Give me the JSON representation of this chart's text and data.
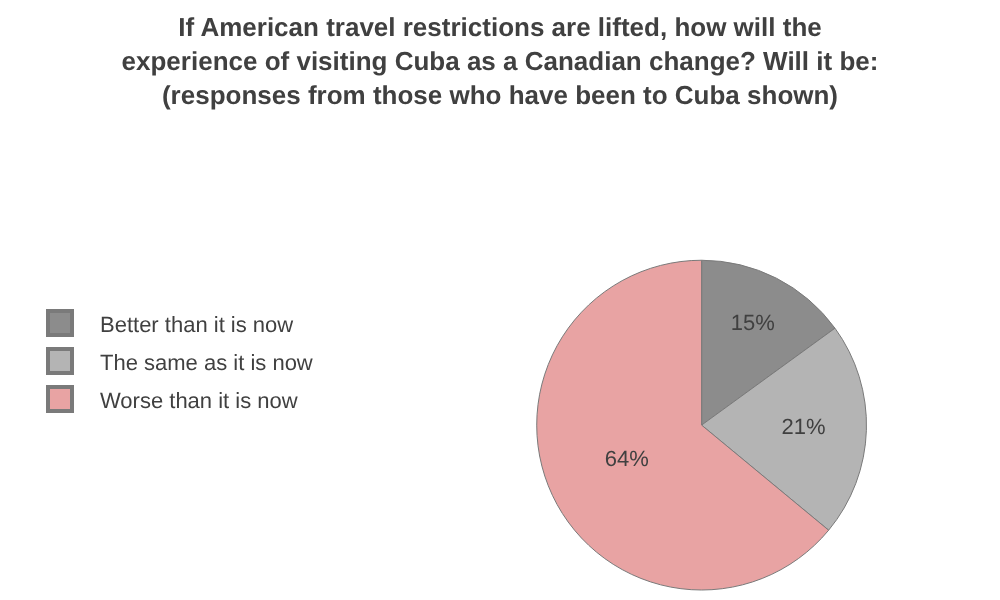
{
  "chart_data": {
    "type": "pie",
    "title": "If American travel restrictions are lifted, how will the\nexperience of visiting Cuba as a Canadian change? Will it be:\n(responses from those who have been to Cuba shown)",
    "categories": [
      "Better than it is now",
      "The same as it is now",
      "Worse than it is now"
    ],
    "values": [
      15,
      21,
      64
    ],
    "value_labels": [
      "15%",
      "21%",
      "64%"
    ],
    "colors": [
      "#8c8c8c",
      "#b4b4b4",
      "#e8a3a3"
    ],
    "legend": "left"
  }
}
